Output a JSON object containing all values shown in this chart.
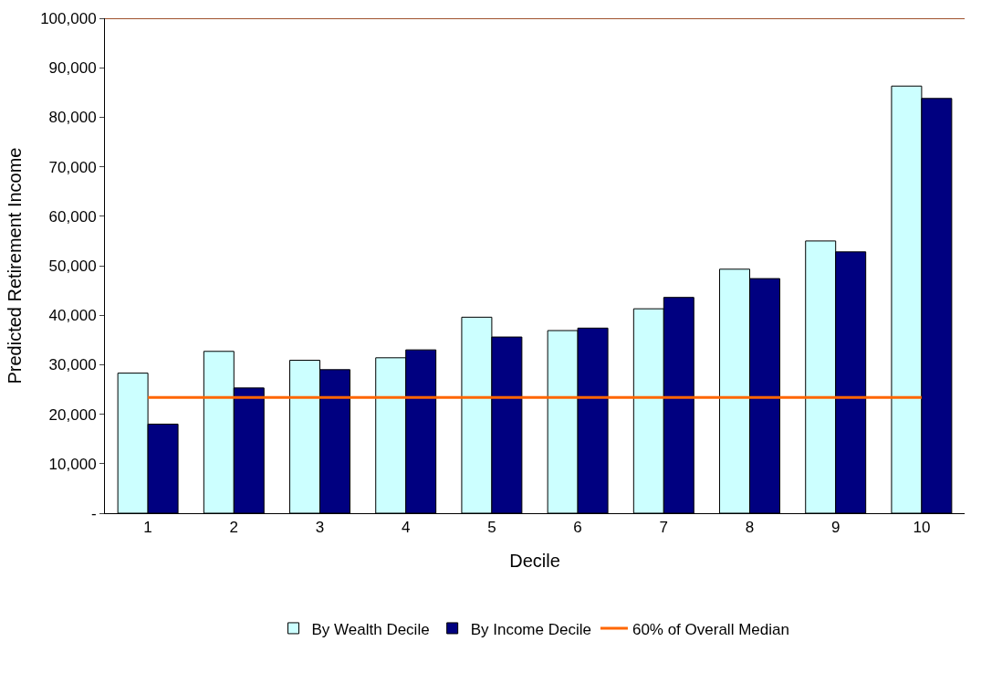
{
  "chart_data": {
    "type": "bar",
    "xlabel": "Decile",
    "ylabel": "Predicted Retirement Income",
    "categories": [
      "1",
      "2",
      "3",
      "4",
      "5",
      "6",
      "7",
      "8",
      "9",
      "10"
    ],
    "series": [
      {
        "name": "By Wealth Decile",
        "color": "#ccffff",
        "values": [
          28300,
          32700,
          30900,
          31400,
          39600,
          36900,
          41300,
          49300,
          55000,
          86300
        ]
      },
      {
        "name": "By Income Decile",
        "color": "#000080",
        "values": [
          18000,
          25300,
          29000,
          33000,
          35600,
          37400,
          43600,
          47400,
          52800,
          83800
        ]
      },
      {
        "name": "60% of Overall Median",
        "type": "line",
        "color": "#ff6600",
        "values": [
          23400,
          23400,
          23400,
          23400,
          23400,
          23400,
          23400,
          23400,
          23400,
          23400
        ]
      }
    ],
    "ylim": [
      0,
      100000
    ],
    "yticks": [
      {
        "value": 0,
        "label": "-"
      },
      {
        "value": 10000,
        "label": "10,000"
      },
      {
        "value": 20000,
        "label": "20,000"
      },
      {
        "value": 30000,
        "label": "30,000"
      },
      {
        "value": 40000,
        "label": "40,000"
      },
      {
        "value": 50000,
        "label": "50,000"
      },
      {
        "value": 60000,
        "label": "60,000"
      },
      {
        "value": 70000,
        "label": "70,000"
      },
      {
        "value": 80000,
        "label": "80,000"
      },
      {
        "value": 90000,
        "label": "90,000"
      },
      {
        "value": 100000,
        "label": "100,000"
      }
    ],
    "ref_lines": [
      {
        "axis": "y",
        "value": 100000,
        "color": "#a0522d"
      }
    ],
    "legend": "bottom"
  }
}
